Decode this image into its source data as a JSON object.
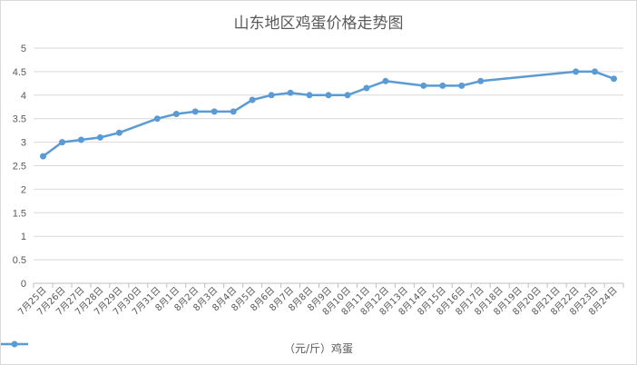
{
  "chart_data": {
    "type": "line",
    "title": "山东地区鸡蛋价格走势图",
    "xlabel": "",
    "ylabel": "",
    "ylim": [
      0,
      5
    ],
    "y_ticks": [
      "0",
      "0.5",
      "1",
      "1.5",
      "2",
      "2.5",
      "3",
      "3.5",
      "4",
      "4.5",
      "5"
    ],
    "grid": true,
    "legend_position": "bottom",
    "categories": [
      "7月25日",
      "7月26日",
      "7月27日",
      "7月28日",
      "7月29日",
      "7月30日",
      "7月31日",
      "8月1日",
      "8月2日",
      "8月3日",
      "8月4日",
      "8月5日",
      "8月6日",
      "8月7日",
      "8月8日",
      "8月9日",
      "8月10日",
      "8月11日",
      "8月12日",
      "8月13日",
      "8月14日",
      "8月15日",
      "8月16日",
      "8月17日",
      "8月18日",
      "8月19日",
      "8月20日",
      "8月21日",
      "8月22日",
      "8月23日",
      "8月24日"
    ],
    "series": [
      {
        "name": "（元/斤）鸡蛋",
        "color": "#5b9bd5",
        "values": [
          2.7,
          3.0,
          3.05,
          3.1,
          3.2,
          null,
          3.5,
          3.6,
          3.65,
          3.65,
          3.65,
          3.9,
          4.0,
          4.05,
          4.0,
          4.0,
          4.0,
          4.15,
          4.3,
          null,
          4.2,
          4.2,
          4.2,
          4.3,
          null,
          null,
          null,
          null,
          4.5,
          4.5,
          4.35
        ]
      }
    ]
  }
}
